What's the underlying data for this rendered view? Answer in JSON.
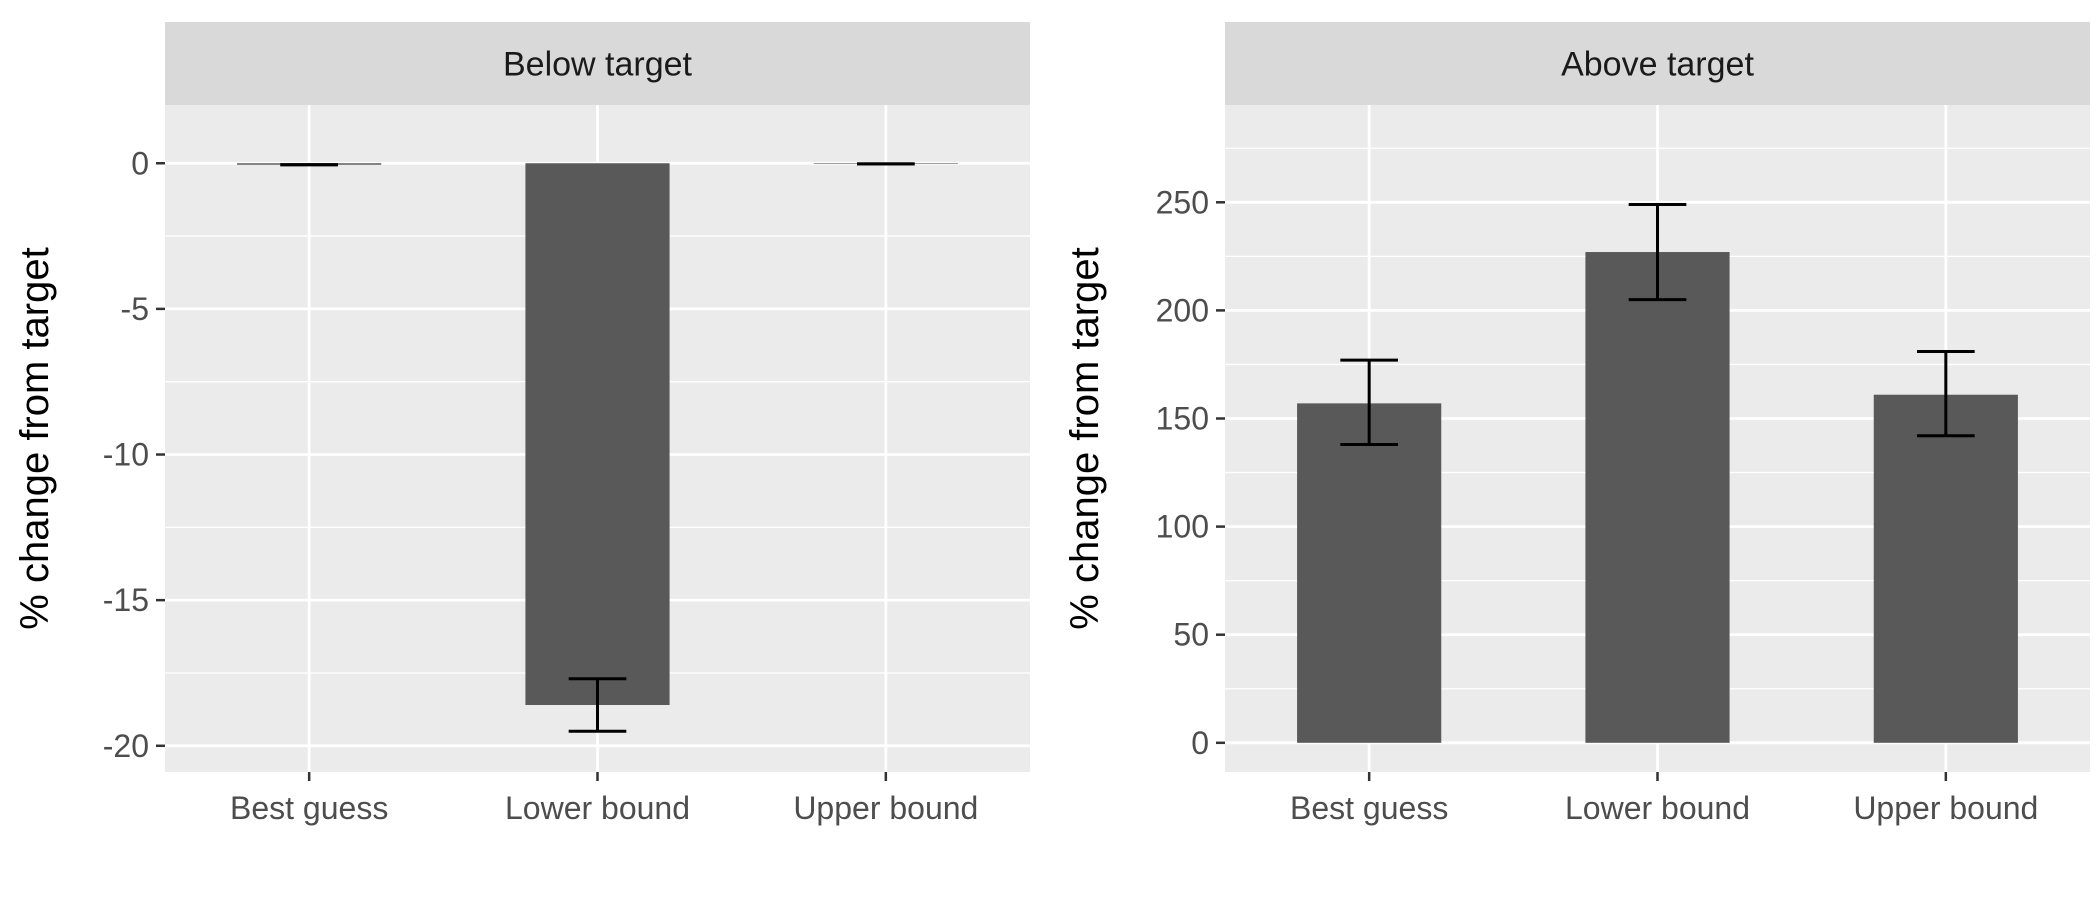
{
  "chart_data": [
    {
      "type": "bar",
      "title": "Below target",
      "xlabel": "",
      "ylabel": "% change from target",
      "categories": [
        "Best guess",
        "Lower bound",
        "Upper bound"
      ],
      "values": [
        -0.05,
        -18.6,
        -0.02
      ],
      "error_low": [
        -0.05,
        -19.5,
        -0.02
      ],
      "error_high": [
        -0.05,
        -17.7,
        -0.02
      ],
      "ylim": [
        -20.9,
        2.0
      ],
      "yticks": [
        0,
        -5,
        -10,
        -15,
        -20
      ],
      "ytick_labels": [
        "0",
        "-5",
        "-10",
        "-15",
        "-20"
      ],
      "grid": true
    },
    {
      "type": "bar",
      "title": "Above target",
      "xlabel": "",
      "ylabel": "% change from target",
      "categories": [
        "Best guess",
        "Lower bound",
        "Upper bound"
      ],
      "values": [
        157,
        227,
        161
      ],
      "error_low": [
        138,
        205,
        142
      ],
      "error_high": [
        177,
        249,
        181
      ],
      "ylim": [
        -13.5,
        295
      ],
      "yticks": [
        0,
        50,
        100,
        150,
        200,
        250
      ],
      "ytick_labels": [
        "0",
        "50",
        "100",
        "150",
        "200",
        "250"
      ],
      "grid": true
    }
  ],
  "colors": {
    "panel_background": "#ebebeb",
    "strip_background": "#d9d9d9",
    "grid": "#ffffff",
    "bar_fill": "#595959",
    "error_bar": "#000000"
  }
}
